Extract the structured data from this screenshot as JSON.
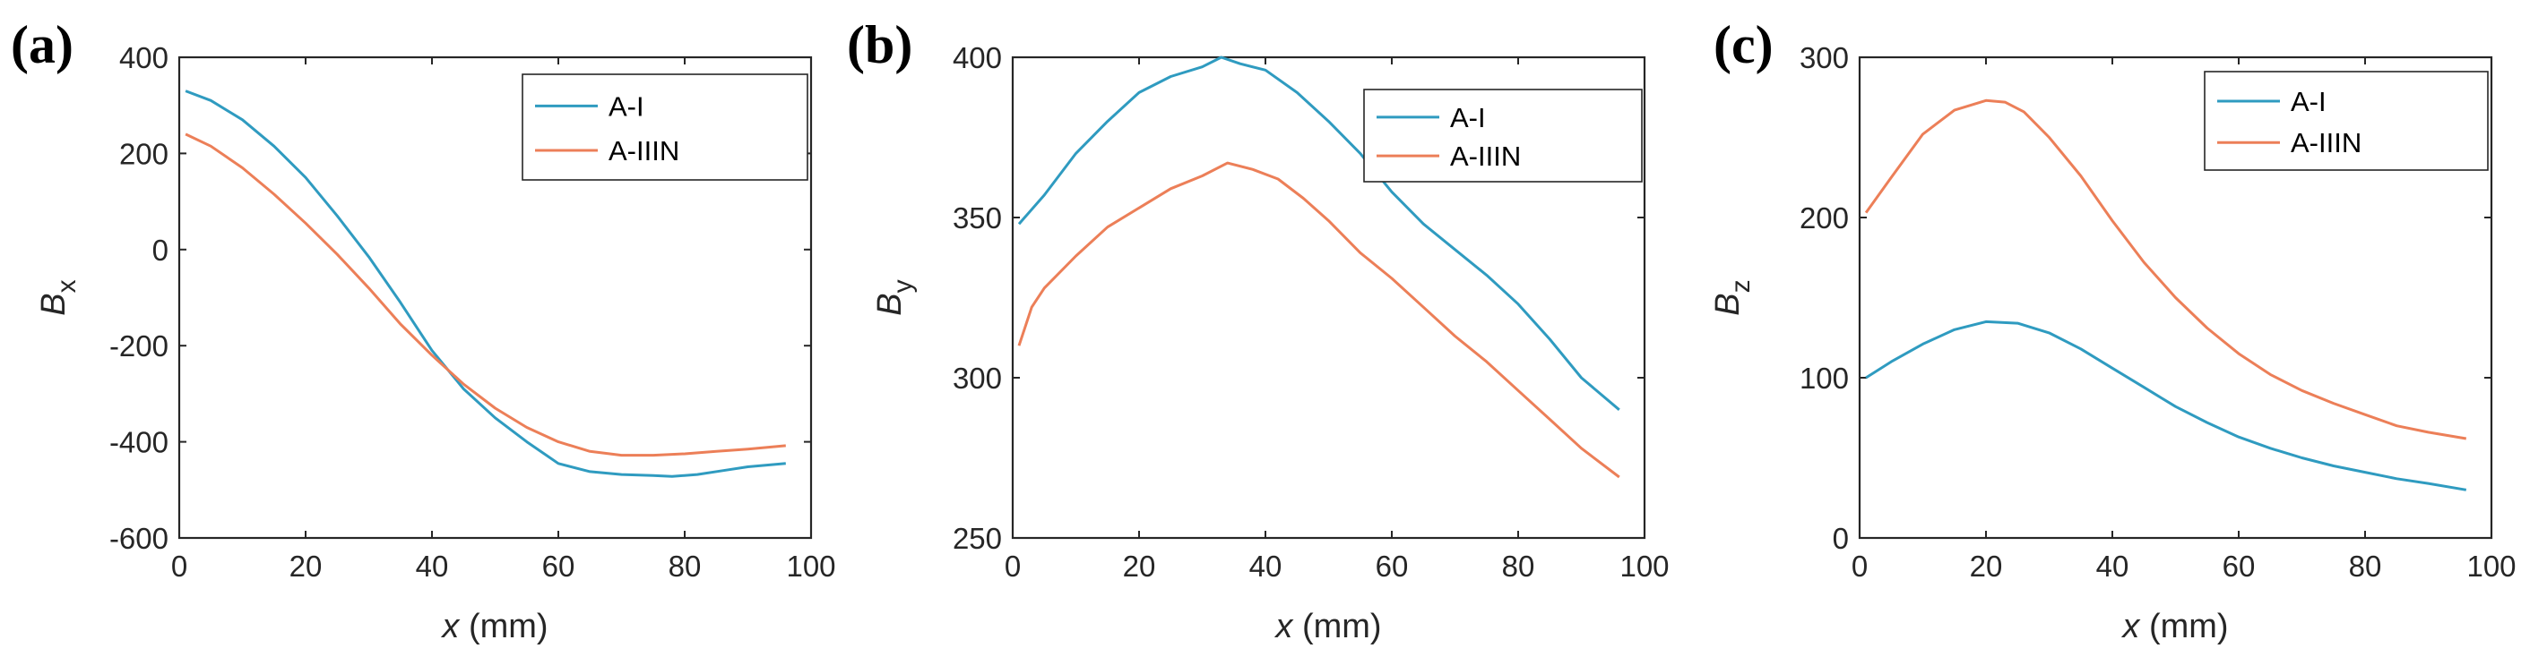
{
  "figure": {
    "colors": {
      "A-I": "#2f9bc0",
      "A-IIIN": "#ec7f58",
      "axis": "#262626"
    }
  },
  "chart_data": [
    {
      "type": "line",
      "panel_label": "(a)",
      "xlabel_var": "x",
      "xlabel_unit": " (mm)",
      "ylabel_var": "B",
      "ylabel_sub": "x",
      "xlim": [
        0,
        100
      ],
      "ylim": [
        -600,
        400
      ],
      "xticks": [
        0,
        20,
        40,
        60,
        80,
        100
      ],
      "yticks": [
        -600,
        -400,
        -200,
        0,
        200,
        400
      ],
      "legend": "top-right",
      "series": [
        {
          "name": "A-I",
          "color": "#2f9bc0",
          "x": [
            1,
            5,
            10,
            15,
            20,
            25,
            30,
            35,
            40,
            45,
            50,
            55,
            60,
            65,
            70,
            75,
            78,
            82,
            86,
            90,
            96
          ],
          "y": [
            330,
            310,
            270,
            215,
            150,
            70,
            -15,
            -110,
            -210,
            -290,
            -350,
            -400,
            -445,
            -462,
            -468,
            -470,
            -472,
            -468,
            -460,
            -452,
            -445
          ]
        },
        {
          "name": "A-IIIN",
          "color": "#ec7f58",
          "x": [
            1,
            5,
            10,
            15,
            20,
            25,
            30,
            35,
            40,
            45,
            50,
            55,
            60,
            65,
            70,
            75,
            80,
            85,
            90,
            96
          ],
          "y": [
            240,
            215,
            170,
            115,
            55,
            -10,
            -80,
            -155,
            -220,
            -280,
            -330,
            -370,
            -400,
            -420,
            -428,
            -428,
            -425,
            -420,
            -415,
            -408
          ]
        }
      ]
    },
    {
      "type": "line",
      "panel_label": "(b)",
      "xlabel_var": "x",
      "xlabel_unit": " (mm)",
      "ylabel_var": "B",
      "ylabel_sub": "y",
      "xlim": [
        0,
        100
      ],
      "ylim": [
        250,
        400
      ],
      "xticks": [
        0,
        20,
        40,
        60,
        80,
        100
      ],
      "yticks": [
        250,
        300,
        350,
        400
      ],
      "legend": "top-right",
      "series": [
        {
          "name": "A-I",
          "color": "#2f9bc0",
          "x": [
            1,
            5,
            10,
            15,
            20,
            25,
            30,
            33,
            36,
            40,
            45,
            50,
            55,
            60,
            65,
            70,
            75,
            80,
            85,
            90,
            96
          ],
          "y": [
            348,
            357,
            370,
            380,
            389,
            394,
            397,
            400,
            398,
            396,
            389,
            380,
            370,
            358,
            348,
            340,
            332,
            323,
            312,
            300,
            290
          ]
        },
        {
          "name": "A-IIIN",
          "color": "#ec7f58",
          "x": [
            1,
            3,
            5,
            10,
            15,
            20,
            25,
            30,
            34,
            38,
            42,
            46,
            50,
            55,
            60,
            65,
            70,
            75,
            80,
            85,
            90,
            96
          ],
          "y": [
            310,
            322,
            328,
            338,
            347,
            353,
            359,
            363,
            367,
            365,
            362,
            356,
            349,
            339,
            331,
            322,
            313,
            305,
            296,
            287,
            278,
            269
          ]
        }
      ]
    },
    {
      "type": "line",
      "panel_label": "(c)",
      "xlabel_var": "x",
      "xlabel_unit": " (mm)",
      "ylabel_var": "B",
      "ylabel_sub": "z",
      "xlim": [
        0,
        100
      ],
      "ylim": [
        0,
        300
      ],
      "xticks": [
        0,
        20,
        40,
        60,
        80,
        100
      ],
      "yticks": [
        0,
        100,
        200,
        300
      ],
      "legend": "top-right",
      "series": [
        {
          "name": "A-I",
          "color": "#2f9bc0",
          "x": [
            1,
            5,
            10,
            15,
            20,
            25,
            30,
            35,
            40,
            45,
            50,
            55,
            60,
            65,
            70,
            75,
            80,
            85,
            90,
            96
          ],
          "y": [
            100,
            110,
            121,
            130,
            135,
            134,
            128,
            118,
            106,
            94,
            82,
            72,
            63,
            56,
            50,
            45,
            41,
            37,
            34,
            30
          ]
        },
        {
          "name": "A-IIIN",
          "color": "#ec7f58",
          "x": [
            1,
            5,
            10,
            15,
            20,
            23,
            26,
            30,
            35,
            40,
            45,
            50,
            55,
            60,
            65,
            70,
            75,
            80,
            85,
            90,
            96
          ],
          "y": [
            203,
            225,
            252,
            267,
            273,
            272,
            266,
            250,
            226,
            198,
            172,
            150,
            131,
            115,
            102,
            92,
            84,
            77,
            70,
            66,
            62
          ]
        }
      ]
    }
  ]
}
